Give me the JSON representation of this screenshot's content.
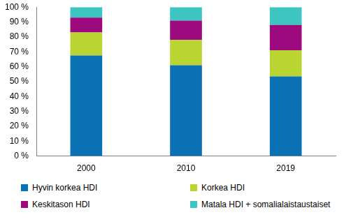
{
  "chart_data": {
    "type": "bar",
    "stacked": true,
    "categories": [
      "2000",
      "2010",
      "2019"
    ],
    "series": [
      {
        "name": "Hyvin korkea HDI",
        "color": "#0a71b4",
        "values": [
          67.5,
          61,
          53.5
        ]
      },
      {
        "name": "Korkea HDI",
        "color": "#bad532",
        "values": [
          15.5,
          17,
          17.5
        ]
      },
      {
        "name": "Keskitason HDI",
        "color": "#9c0a7d",
        "values": [
          10,
          13,
          17
        ]
      },
      {
        "name": "Matala HDI + somalialaistaustaiset",
        "color": "#3cc5c1",
        "values": [
          7,
          9,
          12
        ]
      }
    ],
    "ylim": [
      0,
      100
    ],
    "yticks": [
      {
        "value": 0,
        "label": "0 %"
      },
      {
        "value": 10,
        "label": "10 %"
      },
      {
        "value": 20,
        "label": "20 %"
      },
      {
        "value": 30,
        "label": "30 %"
      },
      {
        "value": 40,
        "label": "40 %"
      },
      {
        "value": 50,
        "label": "50 %"
      },
      {
        "value": 60,
        "label": "60 %"
      },
      {
        "value": 70,
        "label": "70 %"
      },
      {
        "value": 80,
        "label": "80 %"
      },
      {
        "value": 90,
        "label": "90 %"
      },
      {
        "value": 100,
        "label": "100 %"
      }
    ],
    "grid": false,
    "legend": "bottom"
  }
}
